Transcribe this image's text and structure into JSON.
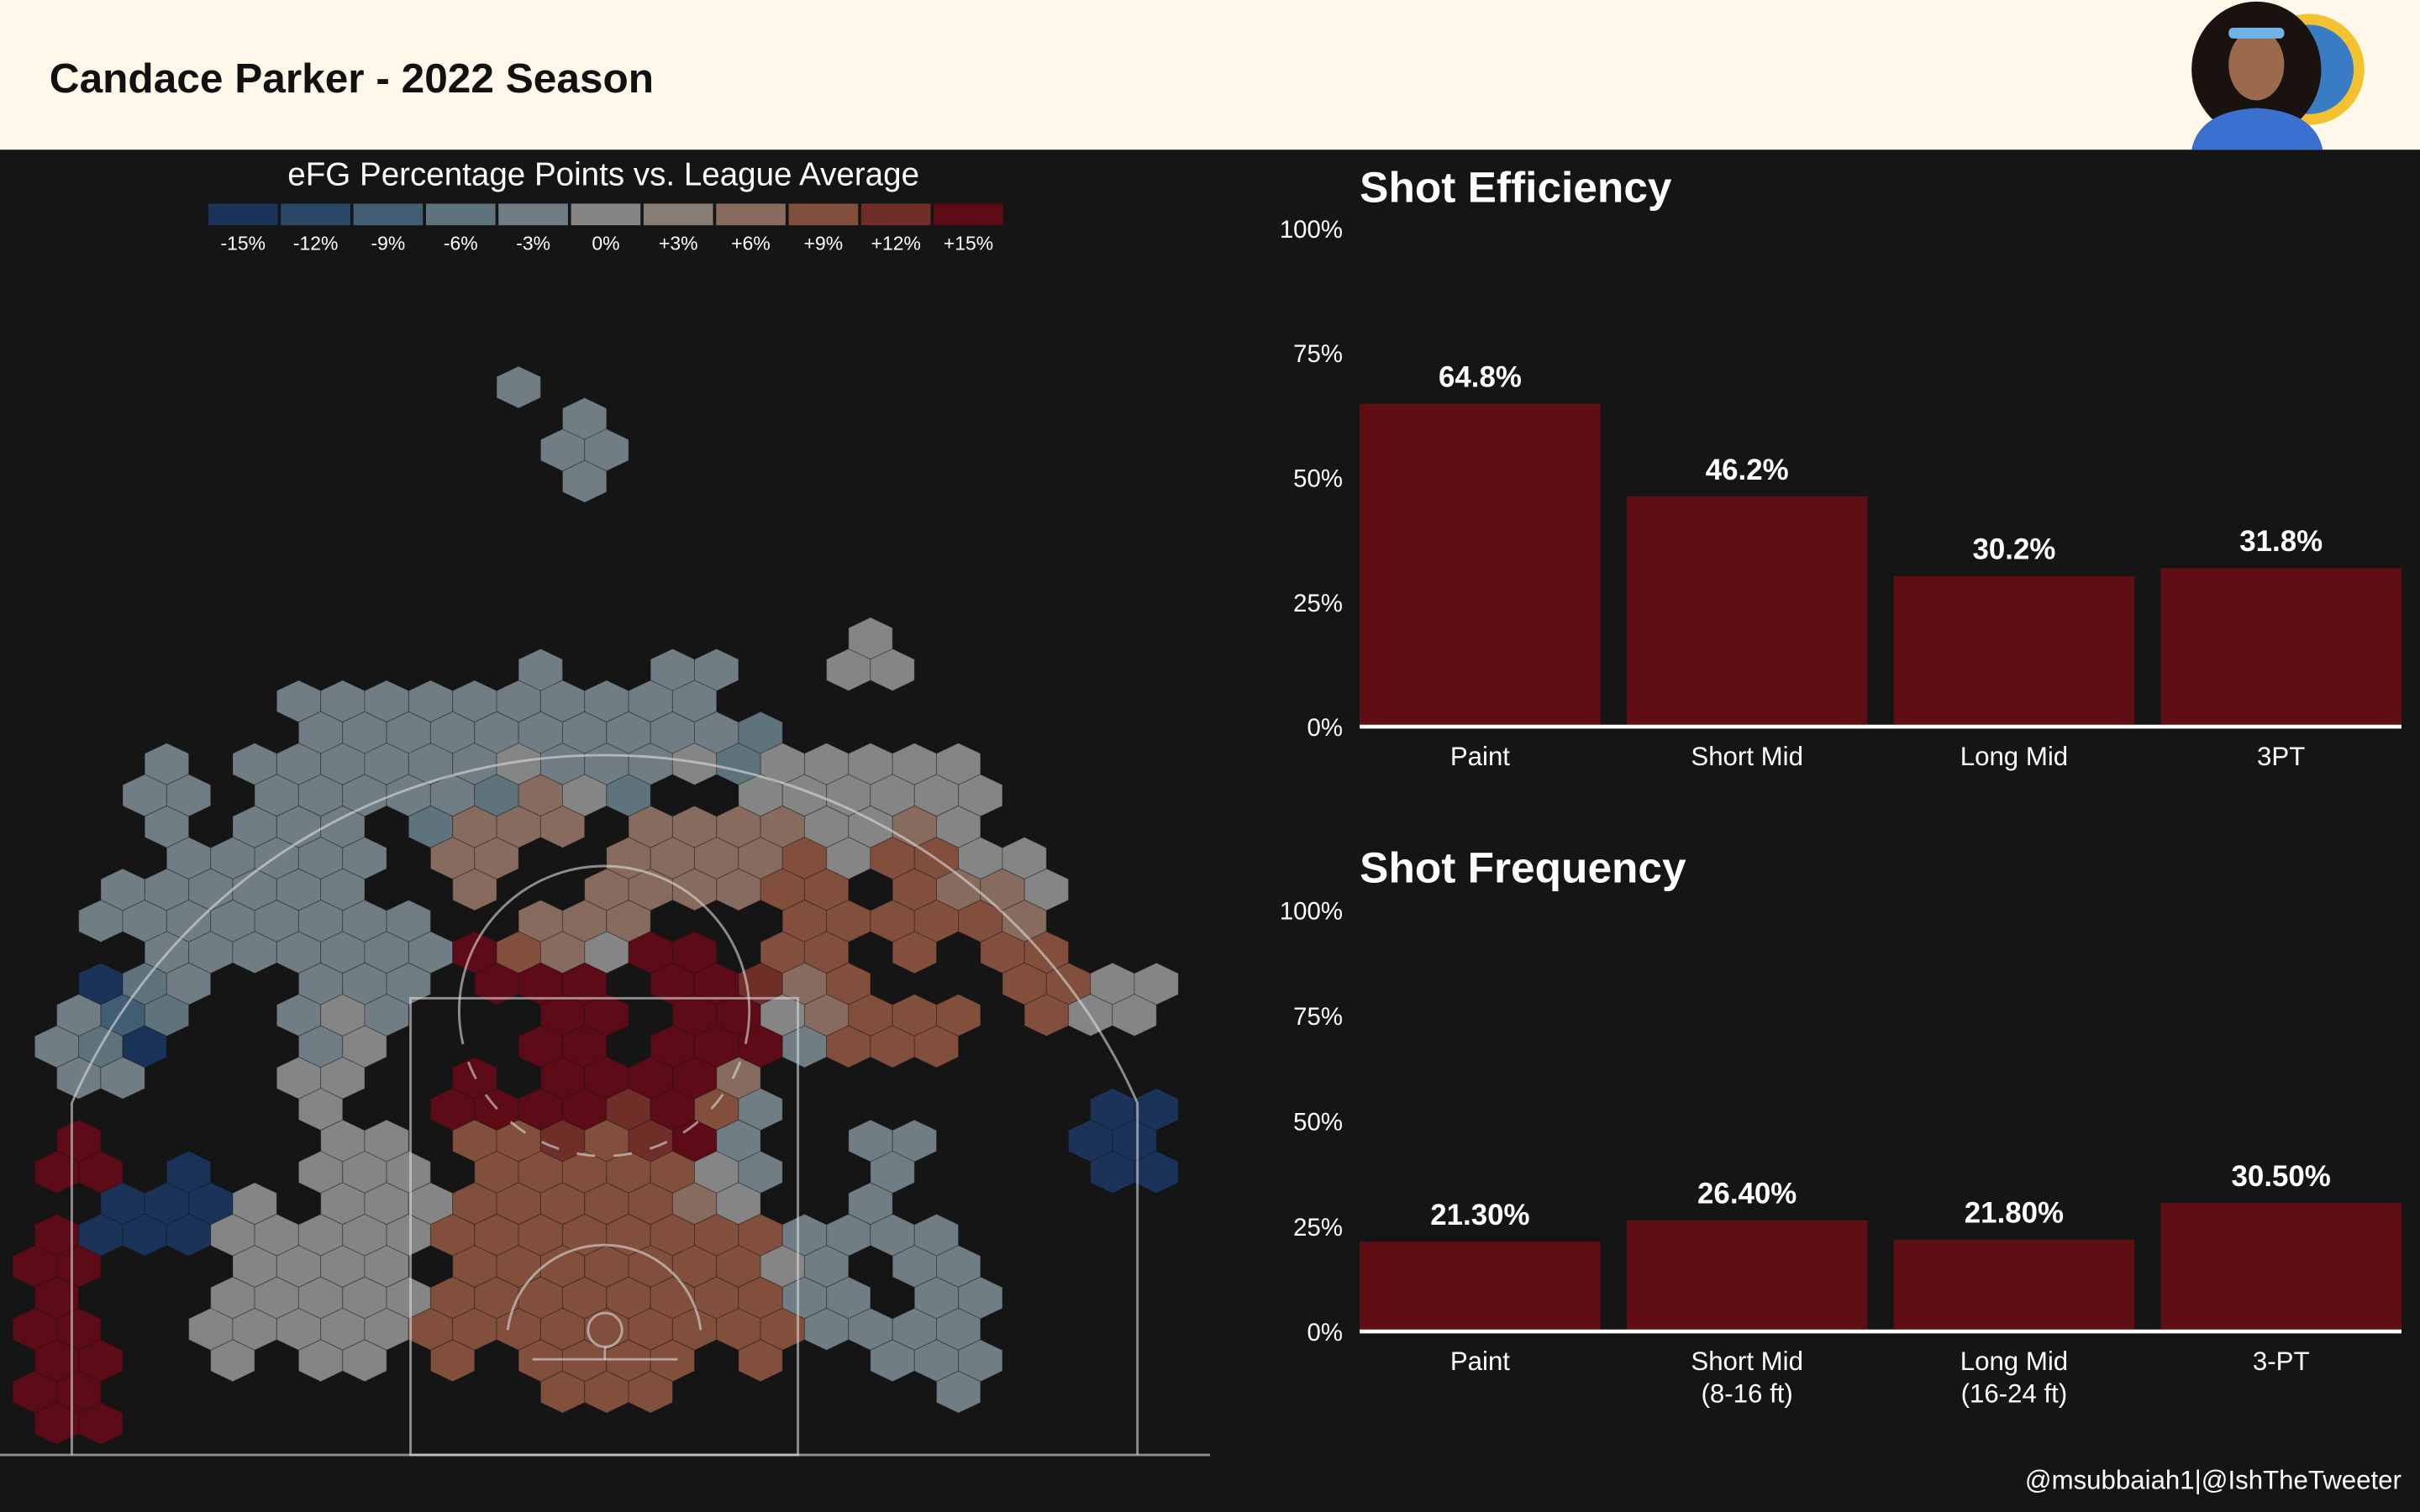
{
  "header": {
    "title": "Candace Parker - 2022 Season"
  },
  "hexmap": {
    "legend_title": "eFG Percentage Points vs. League Average",
    "legend": [
      {
        "code": "a",
        "label": "-15%",
        "color": "#1b3358"
      },
      {
        "code": "b",
        "label": "-12%",
        "color": "#2b4866"
      },
      {
        "code": "c",
        "label": "-9%",
        "color": "#415e73"
      },
      {
        "code": "d",
        "label": "-6%",
        "color": "#5f737d"
      },
      {
        "code": "e",
        "label": "-3%",
        "color": "#717d84"
      },
      {
        "code": "f",
        "label": "0%",
        "color": "#858585"
      },
      {
        "code": "g",
        "label": "+3%",
        "color": "#877d77"
      },
      {
        "code": "h",
        "label": "+6%",
        "color": "#876b5e"
      },
      {
        "code": "i",
        "label": "+9%",
        "color": "#824f3d"
      },
      {
        "code": "j",
        "label": "+12%",
        "color": "#6f2f28"
      },
      {
        "code": "k",
        "label": "+15%",
        "color": "#5c0b17"
      }
    ],
    "hex_rows": [
      "...........e",
      "............e",
      "............ee",
      "............e",
      "",
      "",
      "",
      "",
      "...................f",
      "...........e..ee..ff",
      "......eeeeeeeeee",
      "......eeeeeeeeeed",
      "...e.eeeeeefeeefdfffff",
      "..ee.eeeeedhfd..ffffff",
      "...e.eee.dhhh.hhhhffhf",
      "...eeeee.hh..hhhhifiiff",
      "..eeeeee..h..hhhhii.ihhf",
      ".eeeeeeee..hhh...iiiiih",
      "...eeeeeeekihfkk.ii.i.ii",
      ".ade..eee.kkk.kkjhi...iiff",
      ".ecd..efe...kk.kkfhiii.iff",
      "eda...ef...kk.kkkeiii",
      ".ee...ff..k.kkkkh",
      "......f..kkkkjkie.......aa",
      ".k.....ff.iijijke..ee...aa",
      "kk.a..fff.iiiiife..e....aa",
      "..aaaf.fffiiiiihf..e",
      "kaaafffffiiiiiiiieeee",
      "kk...ffff.iiiiiiife.ee",
      "k...fffffiiiiiiiiee.ee",
      "kk..fffffiiiiiiiiieeee",
      "kk..f.ff.i.iiii.i..eee",
      "kk..........iii......e",
      "kk"
    ]
  },
  "chart_data": [
    {
      "type": "bar",
      "title": "Shot Efficiency",
      "categories": [
        "Paint",
        "Short Mid",
        "Long Mid",
        "3PT"
      ],
      "values": [
        64.8,
        46.2,
        30.2,
        31.8
      ],
      "value_labels": [
        "64.8%",
        "46.2%",
        "30.2%",
        "31.8%"
      ],
      "yticks": [
        "0%",
        "25%",
        "50%",
        "75%",
        "100%"
      ],
      "ylim": [
        0,
        100
      ],
      "bar_color": "#5f0f14"
    },
    {
      "type": "bar",
      "title": "Shot Frequency",
      "categories": [
        "Paint",
        "Short Mid",
        "Long Mid",
        "3-PT"
      ],
      "category_sublabels": [
        "",
        "(8-16 ft)",
        "(16-24 ft)",
        ""
      ],
      "values": [
        21.3,
        26.4,
        21.8,
        30.5
      ],
      "value_labels": [
        "21.30%",
        "26.40%",
        "21.80%",
        "30.50%"
      ],
      "yticks": [
        "0%",
        "25%",
        "50%",
        "75%",
        "100%"
      ],
      "ylim": [
        0,
        100
      ],
      "bar_color": "#5f0f14"
    }
  ],
  "footer": {
    "credit": "@msubbaiah1|@IshTheTweeter"
  },
  "colors": {
    "header_bg": "#fff8ea",
    "background": "#151515",
    "bar": "#5f0f14"
  }
}
